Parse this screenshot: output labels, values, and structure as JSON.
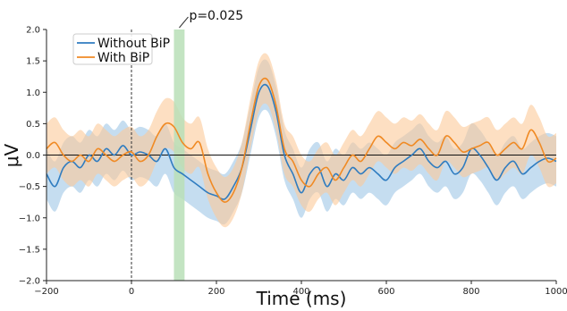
{
  "chart_data": {
    "type": "line",
    "title": "",
    "xlabel": "Time (ms)",
    "ylabel": "μV",
    "xlim": [
      -200,
      1000
    ],
    "ylim": [
      -2.0,
      2.0
    ],
    "xticks": [
      -200,
      0,
      200,
      400,
      600,
      800,
      1000
    ],
    "xtick_labels": [
      "−200",
      "0",
      "200",
      "400",
      "600",
      "800",
      "1000"
    ],
    "yticks": [
      -2.0,
      -1.5,
      -1.0,
      -0.5,
      0.0,
      0.5,
      1.0,
      1.5,
      2.0
    ],
    "ytick_labels": [
      "−2.0",
      "−1.5",
      "−1.0",
      "−0.5",
      "0.0",
      "0.5",
      "1.0",
      "1.5",
      "2.0"
    ],
    "grid": false,
    "legend_position": "top-left",
    "reference_lines": {
      "vertical_x": 0,
      "horizontal_y": 0
    },
    "highlight_region": {
      "x_start": 100,
      "x_end": 125,
      "color": "#b9dfb7",
      "label": "p=0.025"
    },
    "series": [
      {
        "name": "Without BiP",
        "color": "#2f7cc0",
        "band_color": "#9ec7e6",
        "x": [
          -200,
          -180,
          -160,
          -140,
          -120,
          -100,
          -80,
          -60,
          -40,
          -20,
          0,
          20,
          40,
          60,
          80,
          100,
          120,
          140,
          160,
          180,
          200,
          220,
          240,
          260,
          280,
          300,
          320,
          340,
          360,
          380,
          400,
          420,
          440,
          460,
          480,
          500,
          520,
          540,
          560,
          580,
          600,
          620,
          640,
          660,
          680,
          700,
          720,
          740,
          760,
          780,
          800,
          820,
          840,
          860,
          880,
          900,
          920,
          940,
          960,
          980,
          1000
        ],
        "y": [
          -0.3,
          -0.5,
          -0.2,
          -0.1,
          -0.2,
          0.0,
          -0.1,
          0.1,
          0.0,
          0.15,
          0.0,
          0.05,
          0.0,
          -0.1,
          0.1,
          -0.2,
          -0.3,
          -0.4,
          -0.5,
          -0.6,
          -0.65,
          -0.7,
          -0.5,
          -0.2,
          0.4,
          1.0,
          1.1,
          0.7,
          0.0,
          -0.3,
          -0.6,
          -0.3,
          -0.2,
          -0.5,
          -0.3,
          -0.4,
          -0.2,
          -0.3,
          -0.2,
          -0.3,
          -0.4,
          -0.2,
          -0.1,
          0.0,
          0.1,
          -0.1,
          -0.2,
          -0.1,
          -0.3,
          -0.2,
          0.1,
          0.0,
          -0.2,
          -0.4,
          -0.2,
          -0.1,
          -0.3,
          -0.2,
          -0.1,
          -0.05,
          -0.1
        ],
        "lower": [
          -0.7,
          -0.9,
          -0.6,
          -0.5,
          -0.6,
          -0.4,
          -0.5,
          -0.3,
          -0.4,
          -0.25,
          -0.4,
          -0.35,
          -0.4,
          -0.5,
          -0.3,
          -0.6,
          -0.7,
          -0.8,
          -0.9,
          -1.0,
          -1.05,
          -1.1,
          -0.9,
          -0.6,
          0.0,
          0.6,
          0.7,
          0.3,
          -0.4,
          -0.7,
          -1.0,
          -0.7,
          -0.6,
          -0.9,
          -0.7,
          -0.8,
          -0.6,
          -0.7,
          -0.6,
          -0.7,
          -0.8,
          -0.6,
          -0.5,
          -0.4,
          -0.3,
          -0.5,
          -0.6,
          -0.5,
          -0.7,
          -0.6,
          -0.3,
          -0.4,
          -0.6,
          -0.8,
          -0.6,
          -0.5,
          -0.7,
          -0.6,
          -0.5,
          -0.45,
          -0.5
        ],
        "upper": [
          0.1,
          -0.1,
          0.2,
          0.3,
          0.2,
          0.4,
          0.3,
          0.5,
          0.4,
          0.55,
          0.4,
          0.45,
          0.4,
          0.3,
          0.5,
          0.2,
          0.1,
          0.0,
          -0.1,
          -0.2,
          -0.25,
          -0.3,
          -0.1,
          0.2,
          0.8,
          1.4,
          1.5,
          1.1,
          0.4,
          0.1,
          -0.2,
          0.1,
          0.2,
          -0.1,
          0.1,
          0.0,
          0.2,
          0.1,
          0.2,
          0.1,
          0.0,
          0.2,
          0.3,
          0.4,
          0.5,
          0.3,
          0.2,
          0.3,
          0.1,
          0.2,
          0.5,
          0.4,
          0.2,
          0.0,
          0.2,
          0.3,
          0.1,
          0.2,
          0.3,
          0.35,
          0.3
        ]
      },
      {
        "name": "With BiP",
        "color": "#f08a24",
        "band_color": "#fcc99a",
        "x": [
          -200,
          -180,
          -160,
          -140,
          -120,
          -100,
          -80,
          -60,
          -40,
          -20,
          0,
          20,
          40,
          60,
          80,
          100,
          120,
          140,
          160,
          180,
          200,
          220,
          240,
          260,
          280,
          300,
          320,
          340,
          360,
          380,
          400,
          420,
          440,
          460,
          480,
          500,
          520,
          540,
          560,
          580,
          600,
          620,
          640,
          660,
          680,
          700,
          720,
          740,
          760,
          780,
          800,
          820,
          840,
          860,
          880,
          900,
          920,
          940,
          960,
          980,
          1000
        ],
        "y": [
          0.1,
          0.2,
          0.0,
          -0.1,
          0.0,
          -0.1,
          0.1,
          0.0,
          -0.1,
          0.0,
          0.05,
          -0.1,
          0.0,
          0.3,
          0.5,
          0.45,
          0.2,
          0.1,
          0.2,
          -0.3,
          -0.6,
          -0.75,
          -0.6,
          -0.2,
          0.5,
          1.1,
          1.2,
          0.8,
          0.1,
          -0.1,
          -0.4,
          -0.5,
          -0.3,
          -0.2,
          -0.4,
          -0.2,
          0.0,
          -0.1,
          0.1,
          0.3,
          0.2,
          0.1,
          0.2,
          0.15,
          0.25,
          0.1,
          0.0,
          0.3,
          0.2,
          0.05,
          0.1,
          0.15,
          0.2,
          0.0,
          0.1,
          0.2,
          0.1,
          0.4,
          0.2,
          -0.1,
          -0.05
        ],
        "lower": [
          -0.3,
          -0.2,
          -0.4,
          -0.5,
          -0.4,
          -0.5,
          -0.3,
          -0.4,
          -0.5,
          -0.4,
          -0.35,
          -0.5,
          -0.4,
          -0.1,
          0.1,
          0.05,
          -0.2,
          -0.3,
          -0.2,
          -0.7,
          -1.0,
          -1.15,
          -1.0,
          -0.6,
          0.1,
          0.7,
          0.8,
          0.4,
          -0.3,
          -0.5,
          -0.8,
          -0.9,
          -0.7,
          -0.6,
          -0.8,
          -0.6,
          -0.4,
          -0.5,
          -0.3,
          -0.1,
          -0.2,
          -0.3,
          -0.2,
          -0.25,
          -0.15,
          -0.3,
          -0.4,
          -0.1,
          -0.2,
          -0.35,
          -0.3,
          -0.25,
          -0.2,
          -0.4,
          -0.3,
          -0.2,
          -0.3,
          0.0,
          -0.2,
          -0.5,
          -0.45
        ],
        "upper": [
          0.5,
          0.6,
          0.4,
          0.3,
          0.4,
          0.3,
          0.5,
          0.4,
          0.3,
          0.4,
          0.45,
          0.3,
          0.4,
          0.7,
          0.9,
          0.85,
          0.6,
          0.5,
          0.6,
          0.1,
          -0.2,
          -0.35,
          -0.2,
          0.2,
          0.9,
          1.5,
          1.6,
          1.2,
          0.5,
          0.3,
          0.0,
          -0.1,
          0.1,
          0.2,
          0.0,
          0.2,
          0.4,
          0.3,
          0.5,
          0.7,
          0.6,
          0.5,
          0.6,
          0.55,
          0.65,
          0.5,
          0.4,
          0.7,
          0.6,
          0.45,
          0.5,
          0.55,
          0.6,
          0.4,
          0.5,
          0.6,
          0.5,
          0.8,
          0.6,
          0.3,
          0.35
        ]
      }
    ]
  }
}
